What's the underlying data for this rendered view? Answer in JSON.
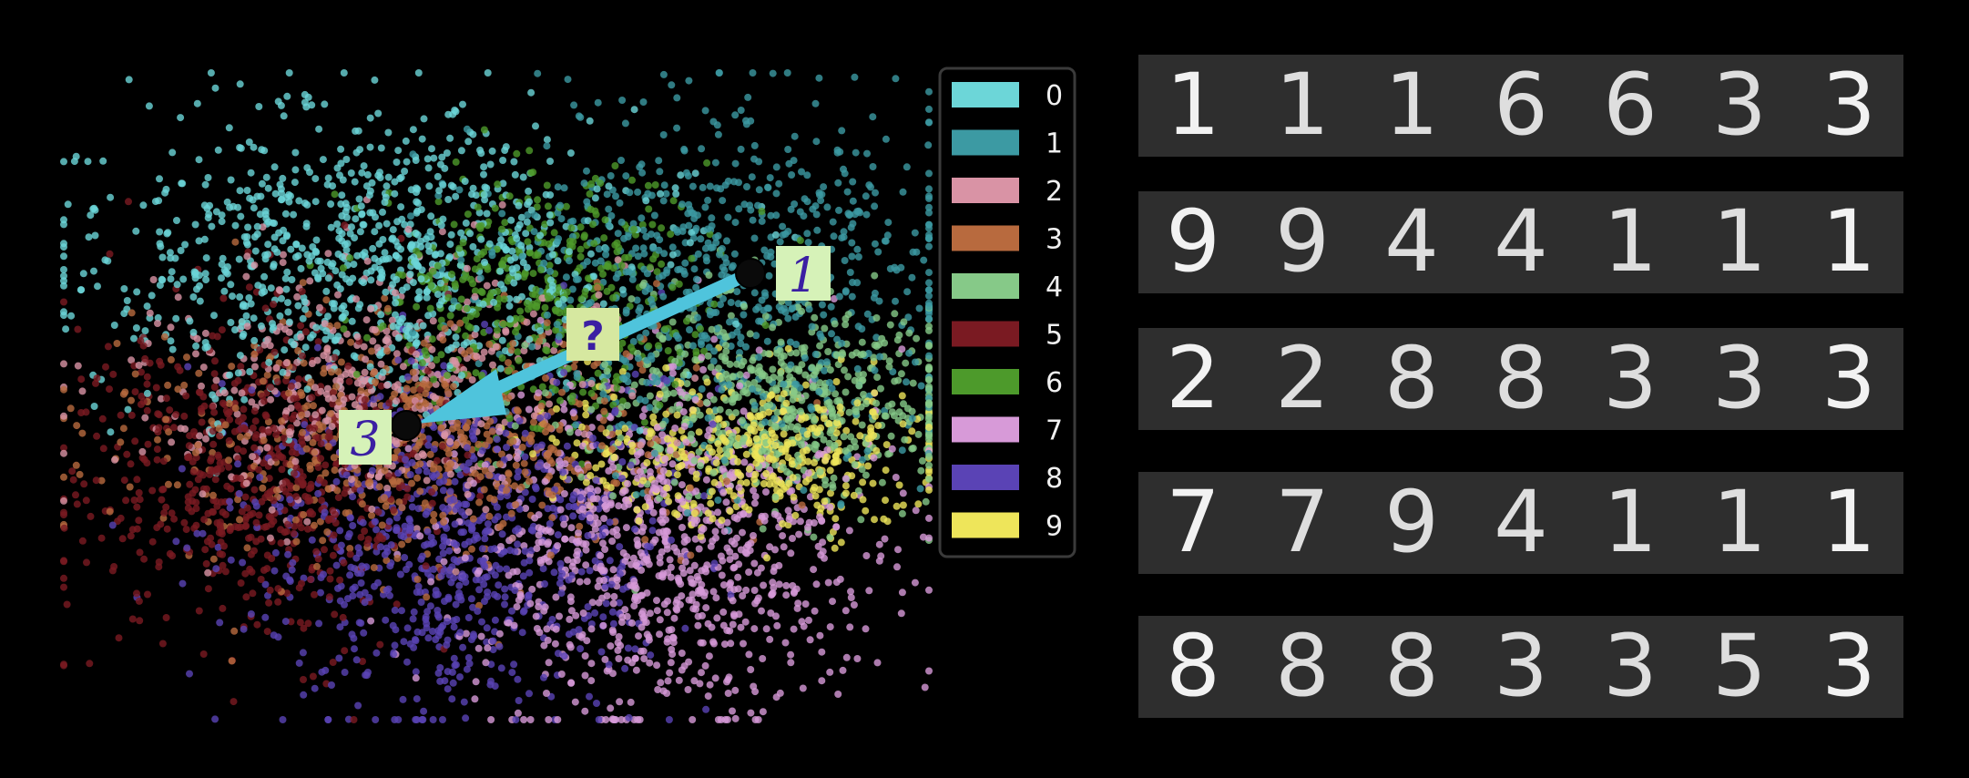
{
  "chart_data": {
    "type": "scatter",
    "title": "",
    "xlabel": "",
    "ylabel": "",
    "grid": false,
    "legend_position": "right",
    "series": [
      {
        "name": "0",
        "color": "#6cd6d8"
      },
      {
        "name": "1",
        "color": "#3c9aa3"
      },
      {
        "name": "2",
        "color": "#d993a5"
      },
      {
        "name": "3",
        "color": "#b86a3e"
      },
      {
        "name": "4",
        "color": "#86c988"
      },
      {
        "name": "5",
        "color": "#7a1a22"
      },
      {
        "name": "6",
        "color": "#4d9a2b"
      },
      {
        "name": "7",
        "color": "#d79ad8"
      },
      {
        "name": "8",
        "color": "#5a43b5"
      },
      {
        "name": "9",
        "color": "#eee55a"
      }
    ],
    "annotations": {
      "start_label": "1",
      "end_label": "3",
      "question_label": "?",
      "arrow_color": "#4fc4dc"
    }
  },
  "interpolation_rows": [
    [
      "1",
      "1",
      "1",
      "6",
      "6",
      "3",
      "3"
    ],
    [
      "9",
      "9",
      "4",
      "4",
      "1",
      "1",
      "1"
    ],
    [
      "2",
      "2",
      "8",
      "8",
      "3",
      "3",
      "3"
    ],
    [
      "7",
      "7",
      "9",
      "4",
      "1",
      "1",
      "1"
    ],
    [
      "8",
      "8",
      "8",
      "3",
      "3",
      "5",
      "3"
    ]
  ]
}
